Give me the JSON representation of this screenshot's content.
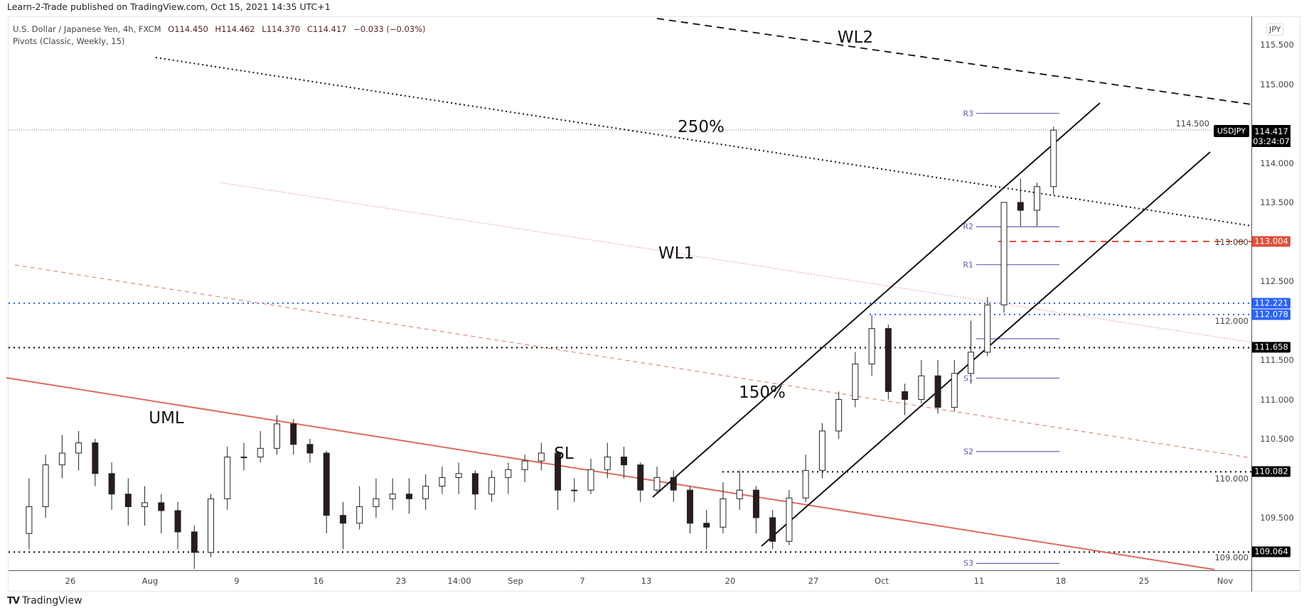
{
  "header": {
    "published": "Learn-2-Trade published on TradingView.com, Oct 15, 2021 14:35 UTC+1"
  },
  "legend": {
    "symbol": "U.S. Dollar / Japanese Yen, 4h, FXCM",
    "open": "O114.450",
    "high": "H114.462",
    "low": "L114.370",
    "close": "C114.417",
    "change": "−0.033 (−0.03%)",
    "indicator": "Pivots (Classic, Weekly, 15)"
  },
  "price_axis": {
    "currency": "JPY",
    "symbol_tag": "USDJPY",
    "current_price": "114.417",
    "countdown": "03:24:07"
  },
  "footer": {
    "logo_mark": "TV",
    "logo_text": "TradingView"
  },
  "colors": {
    "bull": "#ffffff",
    "bear": "#2b1c1c",
    "pivot": "#6a63b0",
    "uml": "#de6b5a",
    "red_level": "#e0503a",
    "blue_level": "#2962ff"
  },
  "chart_data": {
    "type": "candlestick",
    "title": "U.S. Dollar / Japanese Yen, 4h, FXCM",
    "y_ticks": [
      "115.500",
      "115.000",
      "114.500",
      "114.000",
      "113.500",
      "113.000",
      "112.500",
      "112.000",
      "111.500",
      "111.000",
      "110.500",
      "110.000",
      "109.500",
      "109.000"
    ],
    "x_ticks": [
      "26",
      "Aug",
      "9",
      "16",
      "23",
      "14:00",
      "Sep",
      "7",
      "13",
      "20",
      "27",
      "Oct",
      "11",
      "18",
      "25",
      "Nov"
    ],
    "ylim": [
      108.83,
      115.85
    ],
    "candles": [
      [
        "Jul 21",
        109.3,
        110.0,
        109.1,
        109.64
      ],
      [
        "Jul 22",
        109.64,
        110.3,
        109.5,
        110.17
      ],
      [
        "Jul 23",
        110.17,
        110.55,
        110.0,
        110.32
      ],
      [
        "Jul 26",
        110.32,
        110.6,
        110.1,
        110.45
      ],
      [
        "Jul 27",
        110.45,
        110.5,
        109.9,
        110.06
      ],
      [
        "Jul 28",
        110.06,
        110.2,
        109.6,
        109.8
      ],
      [
        "Jul 29",
        109.8,
        110.0,
        109.4,
        109.64
      ],
      [
        "Jul 30",
        109.64,
        109.9,
        109.4,
        109.69
      ],
      [
        "Aug 2",
        109.69,
        109.8,
        109.3,
        109.59
      ],
      [
        "Aug 3",
        109.59,
        109.7,
        109.1,
        109.32
      ],
      [
        "Aug 4",
        109.32,
        109.4,
        108.85,
        109.06
      ],
      [
        "Aug 5",
        109.06,
        109.8,
        109.0,
        109.74
      ],
      [
        "Aug 6",
        109.74,
        110.4,
        109.6,
        110.27
      ],
      [
        "Aug 9",
        110.27,
        110.45,
        110.1,
        110.27
      ],
      [
        "Aug 10",
        110.27,
        110.6,
        110.2,
        110.38
      ],
      [
        "Aug 11",
        110.38,
        110.8,
        110.3,
        110.69
      ],
      [
        "Aug 12",
        110.69,
        110.75,
        110.3,
        110.43
      ],
      [
        "Aug 13",
        110.43,
        110.5,
        110.2,
        110.32
      ],
      [
        "Aug 16",
        110.32,
        110.35,
        109.3,
        109.53
      ],
      [
        "Aug 17",
        109.53,
        109.7,
        109.1,
        109.43
      ],
      [
        "Aug 18",
        109.43,
        109.9,
        109.35,
        109.64
      ],
      [
        "Aug 19",
        109.64,
        110.0,
        109.5,
        109.74
      ],
      [
        "Aug 20",
        109.74,
        110.0,
        109.6,
        109.8
      ],
      [
        "Aug 23",
        109.8,
        110.0,
        109.55,
        109.74
      ],
      [
        "Aug 24",
        109.74,
        110.05,
        109.6,
        109.9
      ],
      [
        "Aug 25",
        109.9,
        110.15,
        109.8,
        110.01
      ],
      [
        "Aug 26",
        110.01,
        110.2,
        109.8,
        110.06
      ],
      [
        "Aug 27",
        110.06,
        110.1,
        109.6,
        109.8
      ],
      [
        "Aug 30",
        109.8,
        110.1,
        109.7,
        110.01
      ],
      [
        "Aug 31",
        110.01,
        110.2,
        109.8,
        110.11
      ],
      [
        "Sep 1",
        110.11,
        110.3,
        109.95,
        110.22
      ],
      [
        "Sep 2",
        110.22,
        110.45,
        110.1,
        110.32
      ],
      [
        "Sep 3",
        110.32,
        110.35,
        109.6,
        109.85
      ],
      [
        "Sep 6",
        109.85,
        110.0,
        109.7,
        109.85
      ],
      [
        "Sep 7",
        109.85,
        110.25,
        109.8,
        110.11
      ],
      [
        "Sep 8",
        110.11,
        110.45,
        110.0,
        110.27
      ],
      [
        "Sep 9",
        110.27,
        110.4,
        110.0,
        110.17
      ],
      [
        "Sep 10",
        110.17,
        110.2,
        109.7,
        109.85
      ],
      [
        "Sep 13",
        109.85,
        110.15,
        109.8,
        110.01
      ],
      [
        "Sep 14",
        110.01,
        110.1,
        109.7,
        109.85
      ],
      [
        "Sep 15",
        109.85,
        109.9,
        109.3,
        109.43
      ],
      [
        "Sep 16",
        109.43,
        109.6,
        109.1,
        109.38
      ],
      [
        "Sep 17",
        109.38,
        109.95,
        109.3,
        109.74
      ],
      [
        "Sep 20",
        109.74,
        110.1,
        109.6,
        109.85
      ],
      [
        "Sep 21",
        109.85,
        109.9,
        109.3,
        109.5
      ],
      [
        "Sep 22",
        109.5,
        109.6,
        109.1,
        109.2
      ],
      [
        "Sep 23",
        109.2,
        109.85,
        109.15,
        109.75
      ],
      [
        "Sep 24",
        109.75,
        110.3,
        109.7,
        110.1
      ],
      [
        "Sep 27",
        110.1,
        110.7,
        110.0,
        110.6
      ],
      [
        "Sep 28",
        110.6,
        111.1,
        110.5,
        111.0
      ],
      [
        "Sep 29",
        111.0,
        111.6,
        110.9,
        111.45
      ],
      [
        "Sep 30",
        111.45,
        112.07,
        111.3,
        111.9
      ],
      [
        "Oct 1",
        111.9,
        111.95,
        111.0,
        111.1
      ],
      [
        "Oct 4",
        111.1,
        111.2,
        110.8,
        111.0
      ],
      [
        "Oct 5",
        111.0,
        111.5,
        110.95,
        111.3
      ],
      [
        "Oct 6",
        111.3,
        111.5,
        110.82,
        110.9
      ],
      [
        "Oct 7",
        110.9,
        111.5,
        110.85,
        111.33
      ],
      [
        "Oct 8",
        111.33,
        112.0,
        111.2,
        111.6
      ],
      [
        "Oct 11",
        111.6,
        112.3,
        111.55,
        112.2
      ],
      [
        "Oct 12",
        112.2,
        113.5,
        112.1,
        113.5
      ],
      [
        "Oct 13",
        113.5,
        113.8,
        113.2,
        113.4
      ],
      [
        "Oct 14",
        113.4,
        113.75,
        113.2,
        113.7
      ],
      [
        "Oct 15",
        113.7,
        114.462,
        113.6,
        114.417
      ]
    ],
    "levels": [
      {
        "value": "113.004",
        "price": 113.004,
        "style": "dashed",
        "color": "#e0503a"
      },
      {
        "value": "112.221",
        "price": 112.221,
        "style": "dotted",
        "color": "#2962ff"
      },
      {
        "value": "112.078",
        "price": 112.078,
        "style": "dotted",
        "color": "#2962ff"
      },
      {
        "value": "111.658",
        "price": 111.658,
        "style": "dotted",
        "color": "#000000"
      },
      {
        "value": "110.082",
        "price": 110.082,
        "style": "dotted",
        "color": "#000000"
      },
      {
        "value": "109.064",
        "price": 109.064,
        "style": "dotted",
        "color": "#000000"
      }
    ],
    "pivots": [
      {
        "label": "R3",
        "price": 114.63
      },
      {
        "label": "R2",
        "price": 113.19
      },
      {
        "label": "R1",
        "price": 112.71
      },
      {
        "label": "",
        "price": 111.77
      },
      {
        "label": "S1",
        "price": 111.27
      },
      {
        "label": "S2",
        "price": 110.34
      },
      {
        "label": "S3",
        "price": 108.92
      }
    ],
    "drawing_labels": {
      "wl2": "WL2",
      "pct250": "250%",
      "wl1": "WL1",
      "pct150": "150%",
      "uml": "UML",
      "sl": "SL"
    }
  }
}
